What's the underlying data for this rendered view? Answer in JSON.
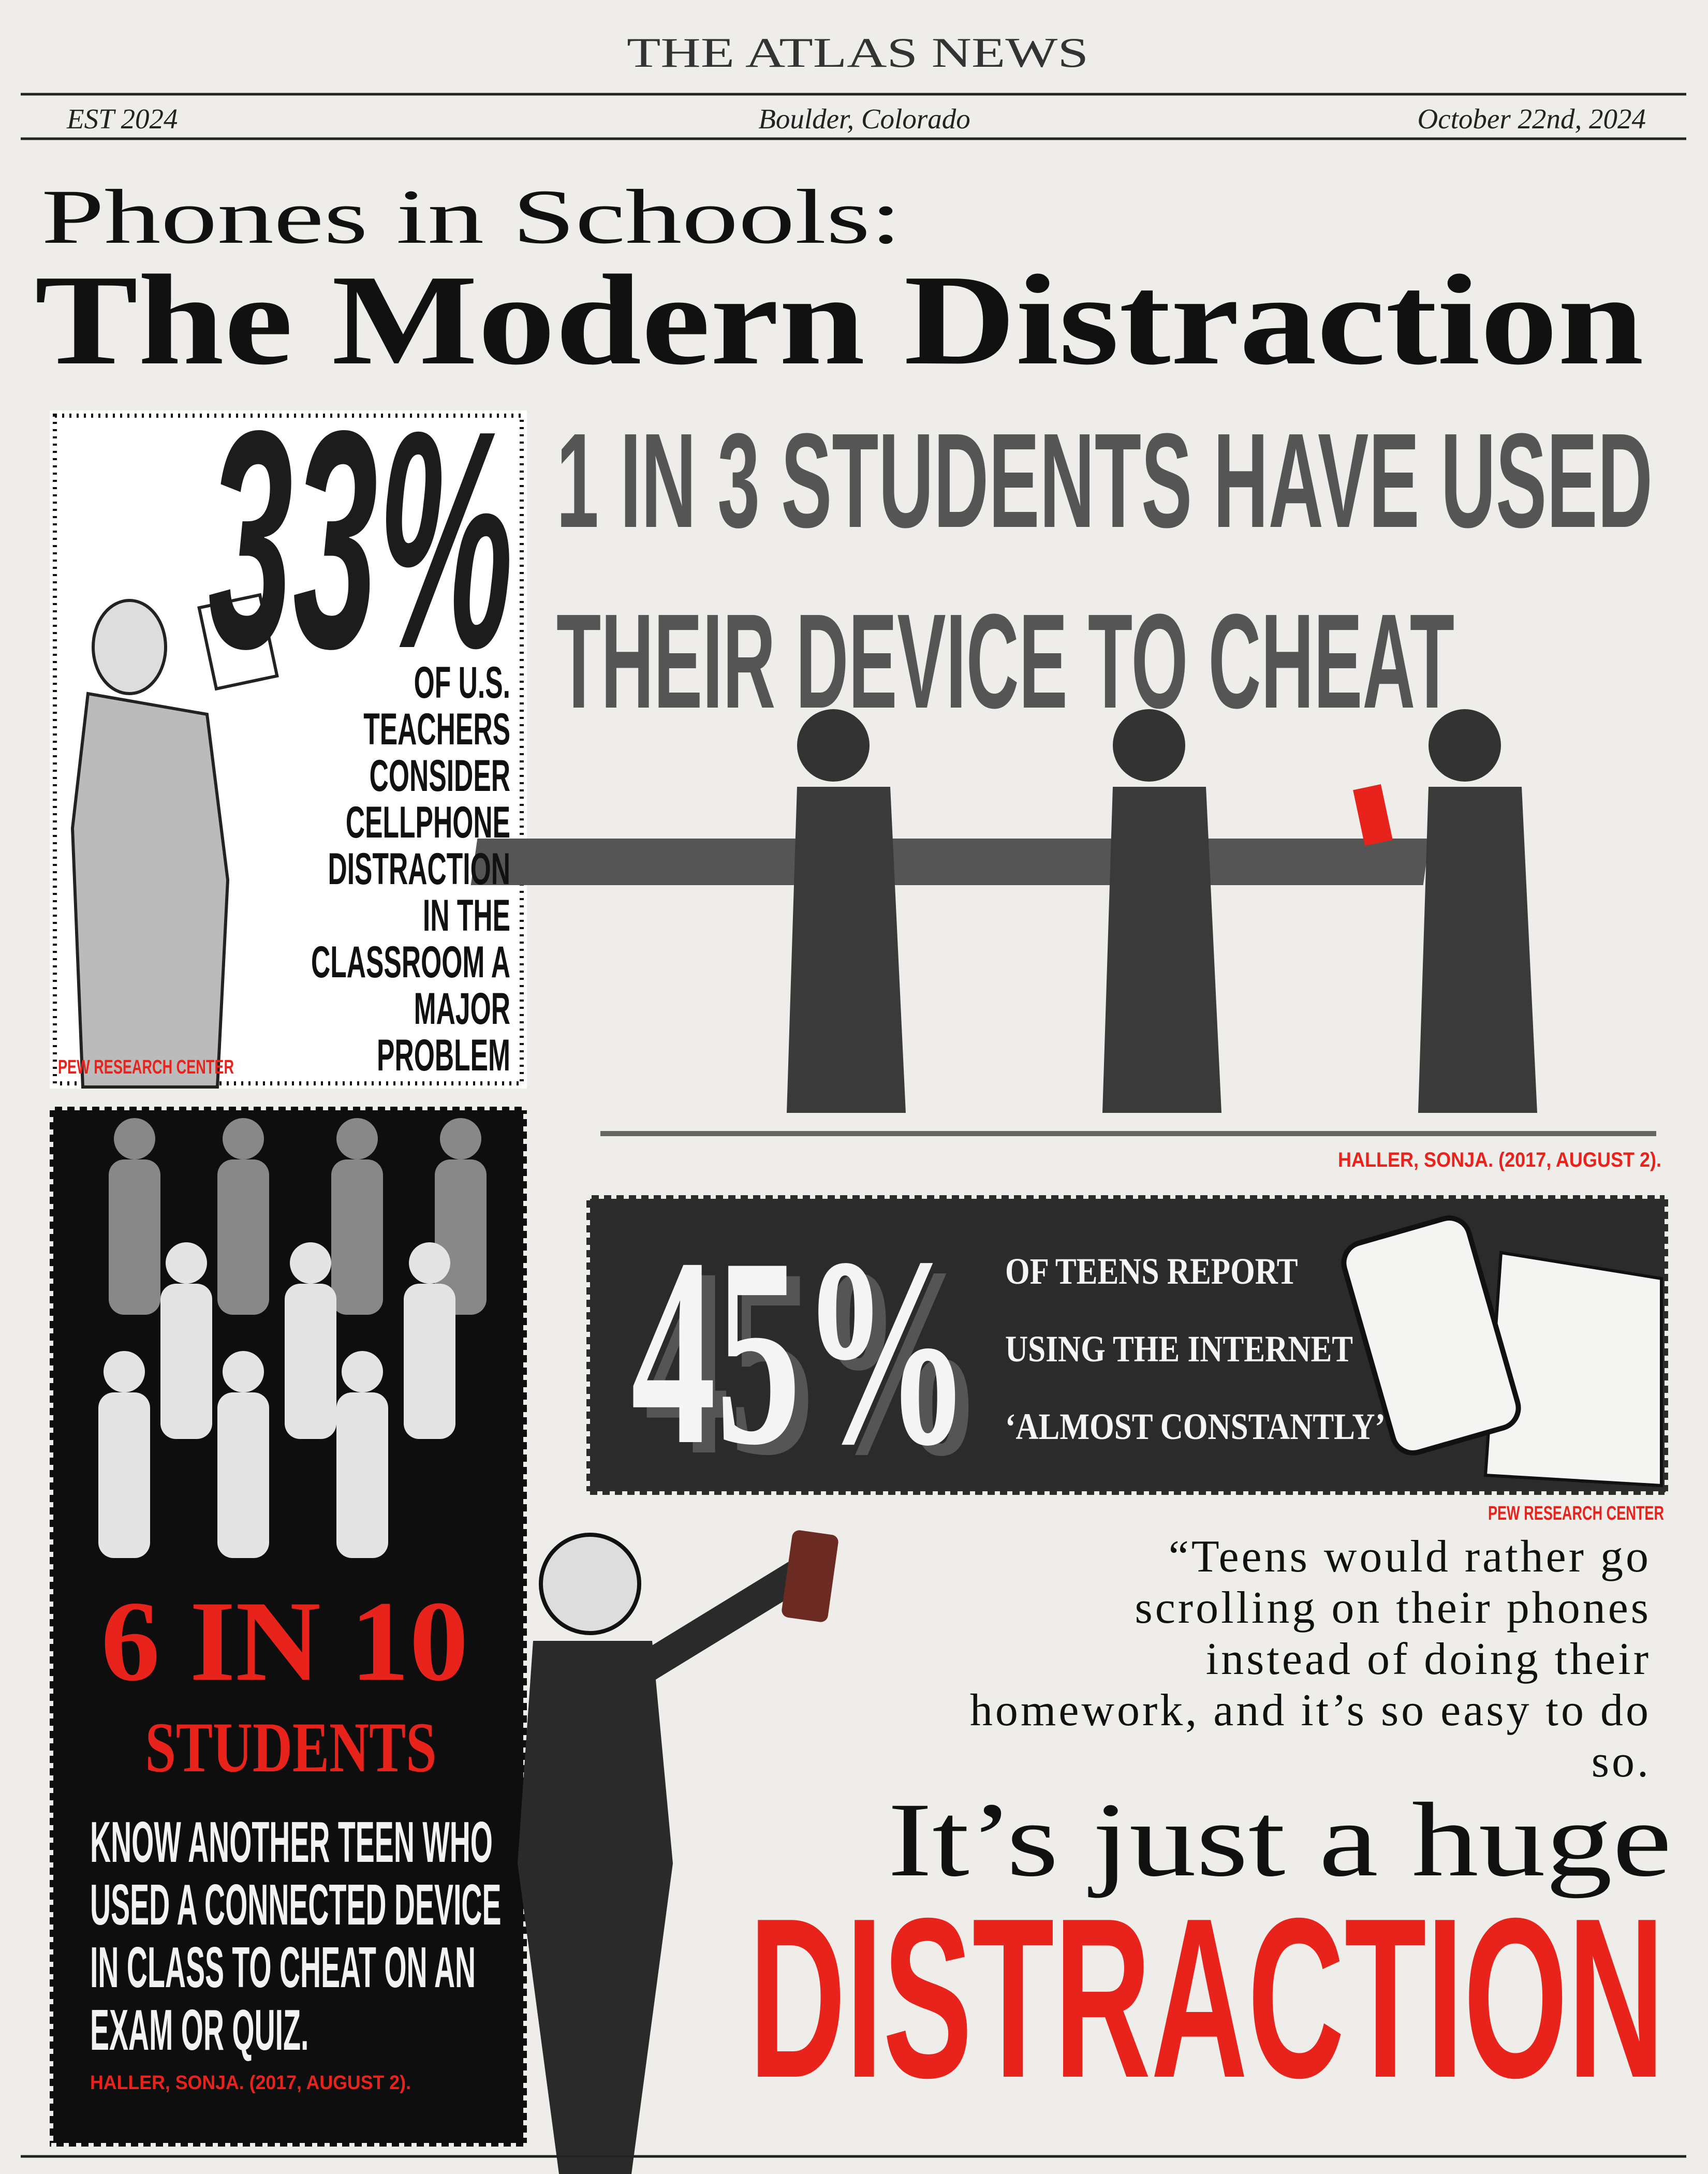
{
  "masthead": {
    "title": "THE ATLAS NEWS",
    "established": "EST 2024",
    "location": "Boulder, Colorado",
    "date": "October 22nd, 2024"
  },
  "headline": {
    "kicker": "Phones in Schools:",
    "title": "The Modern Distraction"
  },
  "teacher_stat": {
    "figure": "33%",
    "lines": [
      "OF U.S.",
      "TEACHERS",
      "CONSIDER",
      "CELLPHONE",
      "DISTRACTION",
      "IN THE",
      "CLASSROOM A",
      "MAJOR",
      "PROBLEM"
    ],
    "source": "PEW RESEARCH CENTER"
  },
  "cheating_stat": {
    "lines": [
      "1 IN 3 STUDENTS HAVE USED",
      "THEIR DEVICE TO CHEAT"
    ],
    "source": "HALLER, SONJA. (2017, AUGUST 2)."
  },
  "internet_stat": {
    "figure": "45%",
    "lines": [
      "OF TEENS REPORT",
      "USING THE INTERNET",
      "‘ALMOST CONSTANTLY’"
    ],
    "source": "PEW RESEARCH CENTER"
  },
  "peer_stat": {
    "figure": "6 IN 10",
    "subject": "STUDENTS",
    "lines": [
      "KNOW ANOTHER TEEN WHO",
      "USED A CONNECTED DEVICE",
      "IN CLASS TO CHEAT ON AN",
      "EXAM OR QUIZ."
    ],
    "source": "HALLER, SONJA. (2017, AUGUST 2)."
  },
  "quote": {
    "lines": [
      "“Teens would rather go",
      "scrolling on their phones",
      "instead of doing their",
      "homework, and it’s so easy to do",
      "so."
    ],
    "emphasis": "It’s just a huge",
    "highlight": "DISTRACTION"
  }
}
